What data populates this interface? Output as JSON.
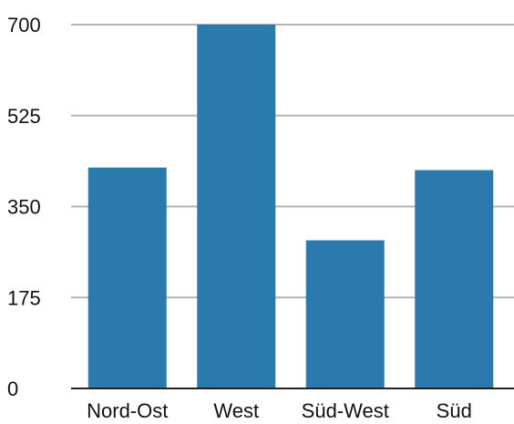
{
  "chart_data": {
    "type": "bar",
    "categories": [
      "Nord-Ost",
      "West",
      "Süd-West",
      "Süd"
    ],
    "values": [
      425,
      700,
      285,
      420
    ],
    "title": "",
    "xlabel": "",
    "ylabel": "",
    "ylim": [
      0,
      700
    ],
    "yticks": [
      "0",
      "175",
      "350",
      "525",
      "700"
    ],
    "grid": true,
    "legend": "none",
    "bar_color": "#2A7AAE"
  }
}
